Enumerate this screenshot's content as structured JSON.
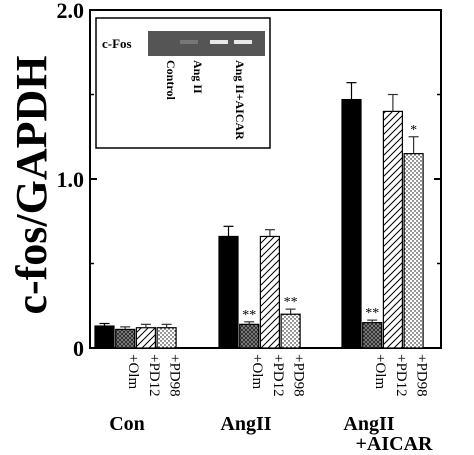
{
  "chart_data": {
    "type": "bar",
    "ylabel": "c-fos/GAPDH",
    "ylim": [
      0,
      2.0
    ],
    "yticks": [
      "0",
      "1.0",
      "2.0"
    ],
    "grid": false,
    "groups": [
      {
        "label": "Con",
        "bars": [
          {
            "label": "",
            "value": 0.13,
            "error": 0.015,
            "pattern": "solid",
            "annotation": ""
          },
          {
            "label": "+Olm",
            "value": 0.11,
            "error": 0.015,
            "pattern": "crosshatch",
            "annotation": ""
          },
          {
            "label": "+PD12",
            "value": 0.12,
            "error": 0.02,
            "pattern": "diagonal",
            "annotation": ""
          },
          {
            "label": "+PD98",
            "value": 0.12,
            "error": 0.02,
            "pattern": "dots",
            "annotation": ""
          }
        ]
      },
      {
        "label": "AngII",
        "bars": [
          {
            "label": "",
            "value": 0.66,
            "error": 0.06,
            "pattern": "solid",
            "annotation": ""
          },
          {
            "label": "+Olm",
            "value": 0.14,
            "error": 0.015,
            "pattern": "crosshatch",
            "annotation": "**"
          },
          {
            "label": "+PD12",
            "value": 0.66,
            "error": 0.04,
            "pattern": "diagonal",
            "annotation": ""
          },
          {
            "label": "+PD98",
            "value": 0.2,
            "error": 0.03,
            "pattern": "dots",
            "annotation": "**"
          }
        ]
      },
      {
        "label": "AngII\n+AICAR",
        "bars": [
          {
            "label": "",
            "value": 1.47,
            "error": 0.1,
            "pattern": "solid",
            "annotation": ""
          },
          {
            "label": "+Olm",
            "value": 0.15,
            "error": 0.015,
            "pattern": "crosshatch",
            "annotation": "**"
          },
          {
            "label": "+PD12",
            "value": 1.4,
            "error": 0.1,
            "pattern": "diagonal",
            "annotation": ""
          },
          {
            "label": "+PD98",
            "value": 1.15,
            "error": 0.1,
            "pattern": "dots",
            "annotation": "*"
          }
        ]
      }
    ],
    "inset": {
      "row_label": "c-Fos",
      "lane_labels": [
        "Control",
        "Ang II",
        "Ang II+AICAR"
      ]
    }
  }
}
